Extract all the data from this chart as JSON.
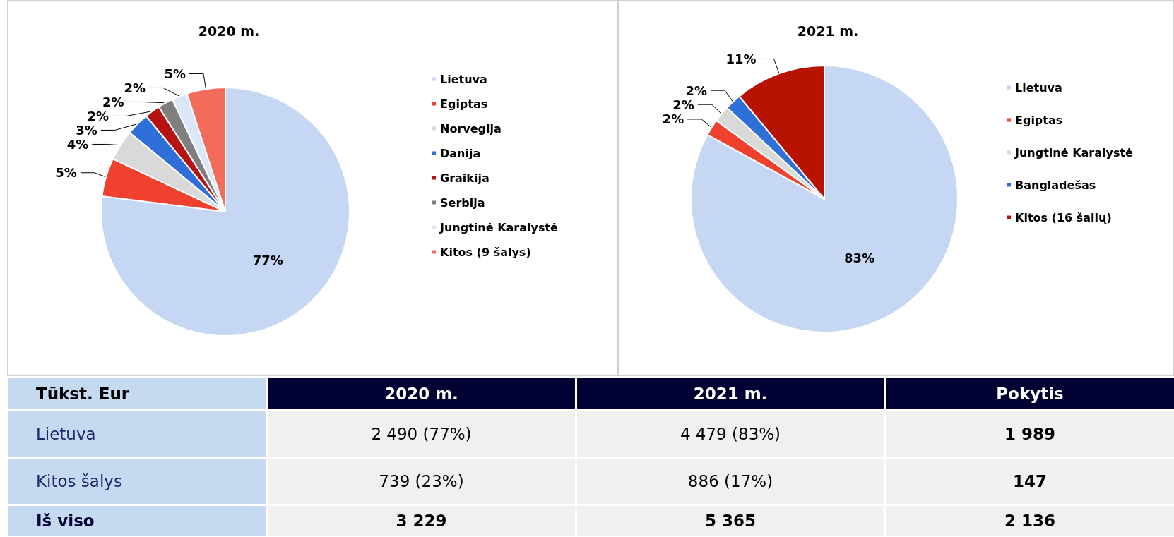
{
  "chart_data": [
    {
      "type": "pie",
      "title": "2020 m.",
      "legend": "right",
      "categories": [
        "Lietuva",
        "Egiptas",
        "Norvegija",
        "Danija",
        "Graikija",
        "Serbija",
        "Jungtinė Karalystė",
        "Kitos (9 šalys)"
      ],
      "values": [
        77,
        5,
        4,
        3,
        2,
        2,
        2,
        5
      ],
      "colors": [
        "#c5d7f2",
        "#f0402e",
        "#d9d9d9",
        "#2e6fd8",
        "#b51212",
        "#7f7f7f",
        "#dbe6f6",
        "#f26b5b"
      ],
      "value_labels": [
        "77%",
        "5%",
        "4%",
        "3%",
        "2%",
        "2%",
        "2%",
        "5%"
      ]
    },
    {
      "type": "pie",
      "title": "2021 m.",
      "legend": "right",
      "categories": [
        "Lietuva",
        "Egiptas",
        "Jungtinė Karalystė",
        "Bangladešas",
        "Kitos (16 šalių)"
      ],
      "values": [
        83,
        2,
        2,
        2,
        11
      ],
      "colors": [
        "#c5d7f2",
        "#f0402e",
        "#d9d9d9",
        "#2e6fd8",
        "#b81200"
      ],
      "value_labels": [
        "83%",
        "2%",
        "2%",
        "2%",
        "11%"
      ]
    },
    {
      "type": "other",
      "title": "Tūkst. Eur",
      "categories": [
        "Lietuva",
        "Kitos šalys",
        "Iš viso"
      ],
      "series": [
        {
          "name": "2020 m.",
          "values": [
            2490,
            739,
            3229
          ],
          "value_labels": [
            "2 490 (77%)",
            "739 (23%)",
            "3 229"
          ]
        },
        {
          "name": "2021 m.",
          "values": [
            4479,
            886,
            5365
          ],
          "value_labels": [
            "4 479 (83%)",
            "886 (17%)",
            "5 365"
          ]
        },
        {
          "name": "Pokytis",
          "values": [
            1989,
            147,
            2136
          ],
          "value_labels": [
            "1 989",
            "147",
            "2 136"
          ]
        }
      ]
    }
  ]
}
